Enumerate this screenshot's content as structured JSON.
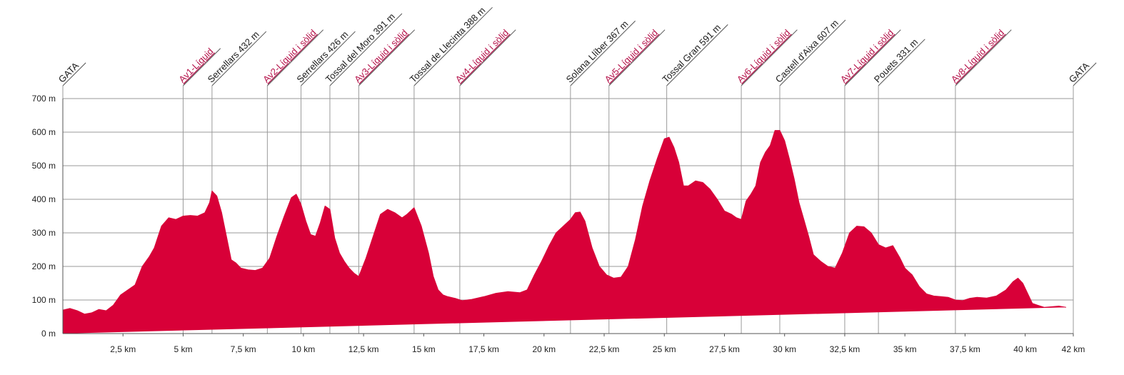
{
  "chart_data": {
    "type": "area",
    "title": "",
    "xlabel": "",
    "ylabel": "",
    "xlim": [
      0,
      42
    ],
    "ylim": [
      0,
      700
    ],
    "grid": true,
    "colors": {
      "fill": "#d80038",
      "aid_label": "#b5124a",
      "landmark_label": "#1a1a1a",
      "grid": "#9a9a9a"
    },
    "y_ticks": [
      {
        "value": 0,
        "label": "0 m"
      },
      {
        "value": 100,
        "label": "100 m"
      },
      {
        "value": 200,
        "label": "200 m"
      },
      {
        "value": 300,
        "label": "300 m"
      },
      {
        "value": 400,
        "label": "400 m"
      },
      {
        "value": 500,
        "label": "500 m"
      },
      {
        "value": 600,
        "label": "600 m"
      },
      {
        "value": 700,
        "label": "700 m"
      }
    ],
    "x_ticks": [
      {
        "value": 2.5,
        "label": "2,5 km"
      },
      {
        "value": 5,
        "label": "5 km"
      },
      {
        "value": 7.5,
        "label": "7,5 km"
      },
      {
        "value": 10,
        "label": "10 km"
      },
      {
        "value": 12.5,
        "label": "12,5 km"
      },
      {
        "value": 15,
        "label": "15 km"
      },
      {
        "value": 17.5,
        "label": "17,5 km"
      },
      {
        "value": 20,
        "label": "20 km"
      },
      {
        "value": 22.5,
        "label": "22,5 km"
      },
      {
        "value": 25,
        "label": "25 km"
      },
      {
        "value": 27.5,
        "label": "27,5 km"
      },
      {
        "value": 30,
        "label": "30 km"
      },
      {
        "value": 32.5,
        "label": "32,5 km"
      },
      {
        "value": 35,
        "label": "35 km"
      },
      {
        "value": 37.5,
        "label": "37,5 km"
      },
      {
        "value": 40,
        "label": "40 km"
      },
      {
        "value": 42,
        "label": "42 km"
      }
    ],
    "markers": [
      {
        "km": 0.0,
        "label": "GATA",
        "kind": "landmark"
      },
      {
        "km": 5.0,
        "label": "Av1-Líquid",
        "kind": "aid"
      },
      {
        "km": 6.2,
        "label": "Serrellars 432 m",
        "kind": "landmark"
      },
      {
        "km": 8.5,
        "label": "Av2-Líquid i sòlid",
        "kind": "aid"
      },
      {
        "km": 9.9,
        "label": "Serrellars 426 m",
        "kind": "landmark"
      },
      {
        "km": 11.1,
        "label": "Tossal del Moro 391 m",
        "kind": "landmark"
      },
      {
        "km": 12.3,
        "label": "Av3-Líquid i sòlid",
        "kind": "aid"
      },
      {
        "km": 14.6,
        "label": "Tossal de Llecinta 388 m",
        "kind": "landmark"
      },
      {
        "km": 16.5,
        "label": "Av4-Líquid i sòlid",
        "kind": "aid"
      },
      {
        "km": 21.1,
        "label": "Solana Llíber 367 m",
        "kind": "landmark"
      },
      {
        "km": 22.7,
        "label": "Av5-Líquid i sòlid",
        "kind": "aid"
      },
      {
        "km": 25.1,
        "label": "Tossal Gran 591 m",
        "kind": "landmark"
      },
      {
        "km": 28.2,
        "label": "Av6-Líquid i sòlid",
        "kind": "aid"
      },
      {
        "km": 29.8,
        "label": "Castell d'Aixa 607 m",
        "kind": "landmark"
      },
      {
        "km": 32.5,
        "label": "Av7-Líquid i sòlid",
        "kind": "aid"
      },
      {
        "km": 33.9,
        "label": "Pouets 331 m",
        "kind": "landmark"
      },
      {
        "km": 37.1,
        "label": "Av8-Líquid i sòlid",
        "kind": "aid"
      },
      {
        "km": 42.0,
        "label": "GATA",
        "kind": "landmark"
      }
    ],
    "profile": {
      "km": [
        0,
        0.3,
        0.6,
        0.9,
        1.2,
        1.5,
        1.8,
        2.1,
        2.4,
        2.7,
        3.0,
        3.3,
        3.6,
        3.8,
        4.1,
        4.4,
        4.7,
        5.0,
        5.3,
        5.6,
        5.9,
        6.1,
        6.2,
        6.4,
        6.6,
        6.8,
        7.0,
        7.2,
        7.4,
        7.7,
        8.0,
        8.3,
        8.6,
        8.9,
        9.2,
        9.5,
        9.7,
        9.9,
        10.1,
        10.3,
        10.5,
        10.7,
        10.9,
        11.1,
        11.3,
        11.5,
        11.7,
        11.9,
        12.1,
        12.3,
        12.6,
        12.9,
        13.2,
        13.5,
        13.8,
        14.1,
        14.3,
        14.6,
        14.9,
        15.2,
        15.4,
        15.6,
        15.8,
        16.0,
        16.3,
        16.6,
        17.0,
        17.5,
        18.0,
        18.5,
        19.0,
        19.3,
        19.6,
        19.9,
        20.2,
        20.5,
        20.8,
        21.1,
        21.3,
        21.5,
        21.7,
        22.0,
        22.3,
        22.6,
        22.9,
        23.2,
        23.5,
        23.8,
        24.1,
        24.4,
        24.7,
        25.0,
        25.2,
        25.4,
        25.6,
        25.8,
        26.0,
        26.3,
        26.6,
        26.9,
        27.2,
        27.5,
        27.8,
        28.0,
        28.2,
        28.4,
        28.6,
        28.8,
        29.0,
        29.2,
        29.4,
        29.6,
        29.8,
        30.0,
        30.2,
        30.4,
        30.6,
        30.8,
        31.0,
        31.2,
        31.5,
        31.8,
        32.1,
        32.4,
        32.7,
        33.0,
        33.3,
        33.6,
        33.9,
        34.2,
        34.5,
        34.8,
        35.0,
        35.3,
        35.6,
        35.9,
        36.2,
        36.5,
        36.8,
        37.1,
        37.4,
        37.7,
        38.0,
        38.4,
        38.8,
        39.2,
        39.5,
        39.7,
        39.9,
        40.1,
        40.3,
        40.5,
        40.8,
        41.1,
        41.4,
        41.7,
        42.0
      ],
      "altitude": [
        70,
        75,
        68,
        58,
        62,
        72,
        68,
        85,
        115,
        130,
        145,
        200,
        230,
        255,
        320,
        345,
        340,
        350,
        352,
        350,
        360,
        390,
        425,
        410,
        360,
        290,
        220,
        210,
        195,
        190,
        188,
        195,
        225,
        290,
        350,
        405,
        415,
        385,
        335,
        295,
        290,
        330,
        380,
        370,
        285,
        240,
        215,
        195,
        180,
        170,
        225,
        290,
        355,
        370,
        360,
        345,
        355,
        375,
        320,
        240,
        170,
        130,
        115,
        110,
        105,
        98,
        102,
        110,
        120,
        125,
        122,
        130,
        175,
        215,
        260,
        300,
        320,
        340,
        360,
        362,
        335,
        255,
        200,
        175,
        165,
        168,
        200,
        280,
        380,
        455,
        520,
        580,
        585,
        555,
        510,
        440,
        440,
        455,
        450,
        430,
        400,
        365,
        355,
        345,
        340,
        395,
        415,
        440,
        510,
        540,
        560,
        605,
        605,
        575,
        520,
        460,
        390,
        340,
        290,
        235,
        215,
        200,
        195,
        240,
        300,
        320,
        318,
        300,
        265,
        255,
        262,
        225,
        195,
        175,
        140,
        118,
        112,
        110,
        108,
        100,
        98,
        105,
        108,
        106,
        112,
        130,
        155,
        165,
        150,
        120,
        90,
        85,
        78,
        80,
        82,
        78
      ]
    }
  }
}
